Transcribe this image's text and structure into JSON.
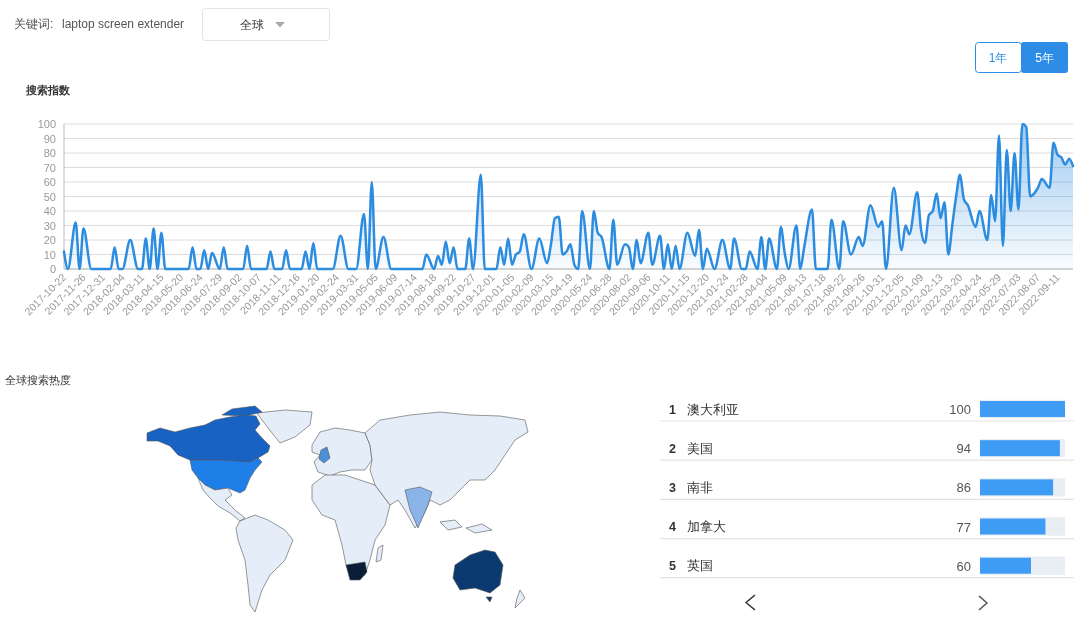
{
  "chart_data": [
    {
      "type": "area",
      "title": "搜索指数",
      "annotations": [
        "关键词:",
        "laptop screen extender",
        "全球",
        "1年",
        "5年"
      ],
      "x": [
        "2017-10-22",
        "2017-10-29",
        "2017-11-12",
        "2017-11-19",
        "2017-11-26",
        "2017-12-10",
        "2018-01-14",
        "2018-01-21",
        "2018-01-28",
        "2018-02-04",
        "2018-02-18",
        "2018-03-04",
        "2018-03-11",
        "2018-03-18",
        "2018-03-25",
        "2018-04-01",
        "2018-04-08",
        "2018-04-15",
        "2018-04-22",
        "2018-06-03",
        "2018-06-10",
        "2018-06-17",
        "2018-06-24",
        "2018-07-01",
        "2018-07-08",
        "2018-07-15",
        "2018-07-29",
        "2018-08-05",
        "2018-08-12",
        "2018-09-09",
        "2018-09-16",
        "2018-09-23",
        "2018-10-21",
        "2018-10-28",
        "2018-11-04",
        "2018-11-18",
        "2018-11-25",
        "2018-12-02",
        "2018-12-23",
        "2018-12-30",
        "2019-01-06",
        "2019-01-13",
        "2019-01-20",
        "2019-02-17",
        "2019-03-03",
        "2019-03-17",
        "2019-03-31",
        "2019-04-14",
        "2019-04-21",
        "2019-04-28",
        "2019-05-05",
        "2019-05-19",
        "2019-06-02",
        "2019-07-28",
        "2019-08-04",
        "2019-08-18",
        "2019-08-25",
        "2019-09-01",
        "2019-09-08",
        "2019-09-15",
        "2019-09-22",
        "2019-09-29",
        "2019-10-13",
        "2019-10-20",
        "2019-10-27",
        "2019-11-10",
        "2019-11-17",
        "2019-12-08",
        "2019-12-15",
        "2019-12-22",
        "2019-12-29",
        "2020-01-05",
        "2020-01-12",
        "2020-01-19",
        "2020-01-26",
        "2020-02-09",
        "2020-02-23",
        "2020-03-08",
        "2020-03-15",
        "2020-03-22",
        "2020-03-29",
        "2020-04-05",
        "2020-04-12",
        "2020-04-19",
        "2020-04-26",
        "2020-05-03",
        "2020-05-10",
        "2020-05-24",
        "2020-05-31",
        "2020-06-07",
        "2020-06-14",
        "2020-06-28",
        "2020-07-05",
        "2020-07-12",
        "2020-07-26",
        "2020-08-02",
        "2020-08-09",
        "2020-08-16",
        "2020-08-23",
        "2020-09-06",
        "2020-09-13",
        "2020-09-27",
        "2020-10-04",
        "2020-10-11",
        "2020-10-18",
        "2020-10-25",
        "2020-11-01",
        "2020-11-15",
        "2020-11-29",
        "2020-12-06",
        "2020-12-13",
        "2020-12-20",
        "2021-01-03",
        "2021-01-17",
        "2021-01-31",
        "2021-02-07",
        "2021-02-21",
        "2021-02-28",
        "2021-03-07",
        "2021-03-21",
        "2021-03-28",
        "2021-04-04",
        "2021-04-11",
        "2021-04-25",
        "2021-05-02",
        "2021-05-09",
        "2021-05-16",
        "2021-05-30",
        "2021-06-06",
        "2021-06-13",
        "2021-06-27",
        "2021-07-04",
        "2021-07-25",
        "2021-08-01",
        "2021-08-15",
        "2021-08-22",
        "2021-09-05",
        "2021-09-19",
        "2021-09-26",
        "2021-10-10",
        "2021-10-24",
        "2021-10-31",
        "2021-11-07",
        "2021-11-21",
        "2021-12-05",
        "2021-12-12",
        "2021-12-19",
        "2022-01-02",
        "2022-01-09",
        "2022-01-16",
        "2022-01-23",
        "2022-01-30",
        "2022-02-06",
        "2022-02-13",
        "2022-02-20",
        "2022-02-27",
        "2022-03-06",
        "2022-03-13",
        "2022-03-20",
        "2022-03-27",
        "2022-04-03",
        "2022-04-17",
        "2022-04-24",
        "2022-05-08",
        "2022-05-15",
        "2022-05-22",
        "2022-05-29",
        "2022-06-05",
        "2022-06-12",
        "2022-06-19",
        "2022-06-26",
        "2022-07-03",
        "2022-07-10",
        "2022-07-17",
        "2022-07-24",
        "2022-07-31",
        "2022-08-07",
        "2022-08-14",
        "2022-08-28",
        "2022-09-04",
        "2022-09-11",
        "2022-09-18",
        "2022-09-25",
        "2022-10-02",
        "2022-10-09"
      ],
      "values": [
        12,
        0,
        32,
        0,
        28,
        0,
        0,
        15,
        0,
        0,
        20,
        0,
        0,
        21,
        0,
        28,
        0,
        25,
        0,
        0,
        15,
        0,
        0,
        13,
        0,
        11,
        0,
        15,
        0,
        0,
        16,
        0,
        0,
        12,
        0,
        0,
        13,
        0,
        0,
        12,
        0,
        18,
        0,
        0,
        23,
        0,
        0,
        38,
        0,
        60,
        0,
        22,
        0,
        0,
        10,
        0,
        9,
        3,
        19,
        4,
        15,
        0,
        0,
        21,
        0,
        65,
        0,
        0,
        15,
        3,
        21,
        3,
        10,
        12,
        24,
        0,
        21,
        4,
        17,
        35,
        36,
        10,
        12,
        17,
        3,
        0,
        40,
        0,
        40,
        25,
        22,
        0,
        34,
        3,
        17,
        15,
        0,
        20,
        4,
        25,
        3,
        23,
        0,
        17,
        0,
        16,
        0,
        25,
        9,
        27,
        0,
        14,
        0,
        20,
        0,
        21,
        0,
        0,
        12,
        0,
        22,
        0,
        21,
        0,
        29,
        11,
        0,
        30,
        0,
        15,
        41,
        0,
        0,
        34,
        0,
        33,
        10,
        22,
        16,
        44,
        29,
        33,
        0,
        56,
        13,
        30,
        24,
        53,
        27,
        18,
        37,
        40,
        52,
        35,
        46,
        10,
        30,
        50,
        65,
        48,
        44,
        29,
        40,
        20,
        51,
        33,
        92,
        16,
        82,
        40,
        80,
        41,
        100,
        98,
        50,
        52,
        56,
        62,
        56,
        87,
        79,
        77,
        72,
        76,
        71
      ],
      "color": "#2b8ce0",
      "xlim": [
        "2017-10-22",
        "2022-10-09"
      ],
      "xticks": [
        "2017-10-22",
        "2017-11-26",
        "2017-12-31",
        "2018-02-04",
        "2018-03-11",
        "2018-04-15",
        "2018-05-20",
        "2018-06-24",
        "2018-07-29",
        "2018-09-02",
        "2018-10-07",
        "2018-11-11",
        "2018-12-16",
        "2019-01-20",
        "2019-02-24",
        "2019-03-31",
        "2019-05-05",
        "2019-06-09",
        "2019-07-14",
        "2019-08-18",
        "2019-09-22",
        "2019-10-27",
        "2019-12-01",
        "2020-01-05",
        "2020-02-09",
        "2020-03-15",
        "2020-04-19",
        "2020-05-24",
        "2020-06-28",
        "2020-08-02",
        "2020-09-06",
        "2020-10-11",
        "2020-11-15",
        "2020-12-20",
        "2021-01-24",
        "2021-02-28",
        "2021-04-04",
        "2021-05-09",
        "2021-06-13",
        "2021-07-18",
        "2021-08-22",
        "2021-09-26",
        "2021-10-31",
        "2021-12-05",
        "2022-01-09",
        "2022-02-13",
        "2022-03-20",
        "2022-04-24",
        "2022-05-29",
        "2022-07-03",
        "2022-08-07",
        "2022-09-11"
      ],
      "ylim": [
        0,
        100
      ],
      "yticks": [
        0,
        10,
        20,
        30,
        40,
        50,
        60,
        70,
        80,
        90,
        100
      ],
      "grid": "y"
    },
    {
      "type": "bar",
      "orientation": "horizontal",
      "annotations": [
        "全球搜索热度"
      ],
      "categories": [
        "1 澳大利亚",
        "2 美国",
        "3 南非",
        "4 加拿大",
        "5 英国"
      ],
      "values": [
        100,
        94,
        86,
        77,
        60
      ],
      "color": "#3f9cf5",
      "xlim": [
        0,
        100
      ],
      "data_labels": true,
      "tick_labels": "y",
      "grid": "y",
      "bands": [
        {
          "axis": "x",
          "from": 0,
          "to": 100,
          "color": "#e9eef5"
        }
      ]
    }
  ]
}
